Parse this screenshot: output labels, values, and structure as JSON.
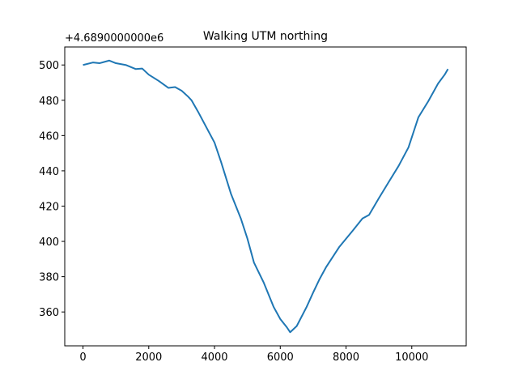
{
  "chart_data": {
    "type": "line",
    "title": "Walking UTM northing",
    "offset_label": "+4.6890000000e6",
    "x": [
      0,
      300,
      500,
      800,
      1000,
      1300,
      1600,
      1800,
      2000,
      2300,
      2600,
      2800,
      3000,
      3200,
      3300,
      3500,
      4000,
      4200,
      4500,
      4800,
      5000,
      5200,
      5500,
      5800,
      6000,
      6200,
      6300,
      6500,
      6800,
      7000,
      7200,
      7400,
      7800,
      8200,
      8500,
      8700,
      9000,
      9300,
      9600,
      9900,
      10200,
      10500,
      10800,
      11000,
      11100
    ],
    "series": [
      {
        "color": "#1f77b4",
        "values": [
          500,
          501.4,
          501,
          502.5,
          501,
          500,
          497.7,
          498,
          494.5,
          491,
          487,
          487.5,
          485.4,
          482,
          480,
          473.5,
          456,
          445,
          427,
          413,
          401.6,
          388,
          376.5,
          362.8,
          356,
          351.3,
          348.5,
          352,
          362.8,
          371,
          378.8,
          385.6,
          397,
          406,
          413,
          415,
          424.5,
          433.7,
          442.8,
          453.3,
          470.3,
          479.4,
          489.5,
          494.5,
          497.7
        ]
      }
    ],
    "xlim": [
      -555,
      11655
    ],
    "ylim": [
      340.8,
      510.2
    ],
    "xticks": [
      0,
      2000,
      4000,
      6000,
      8000,
      10000
    ],
    "yticks": [
      360,
      380,
      400,
      420,
      440,
      460,
      480,
      500
    ]
  }
}
